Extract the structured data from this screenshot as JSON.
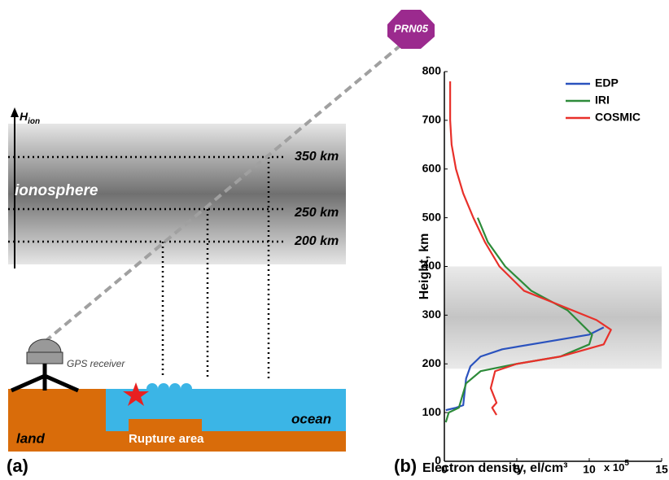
{
  "diagram": {
    "satellite": "PRN05",
    "axis_label": "H",
    "axis_label_sub": "ion",
    "layer": "ionosphere",
    "heights": [
      "350 km",
      "250 km",
      "200 km"
    ],
    "receiver": "GPS receiver",
    "land": "land",
    "ocean": "ocean",
    "rupture": "Rupture area",
    "panel": "(a)"
  },
  "chart_data": {
    "type": "line",
    "panel": "(b)",
    "x_label": "Electron density, el/cm³",
    "x_label_multiplier": "x 10",
    "x_label_exponent": "5",
    "y_label": "Height, km",
    "xlim": [
      0,
      15
    ],
    "xticks": [
      0,
      5,
      10,
      15
    ],
    "ylim": [
      0,
      800
    ],
    "yticks": [
      0,
      100,
      200,
      300,
      400,
      500,
      600,
      700,
      800
    ],
    "highlight_ylim": [
      190,
      400
    ],
    "legend": "upper right",
    "series": [
      {
        "name": "EDP",
        "color": "#2a52be",
        "x": [
          11,
          10,
          7,
          4,
          2.5,
          1.8,
          1.5,
          1.3,
          0.8,
          0.1
        ],
        "values": [
          275,
          260,
          245,
          230,
          215,
          195,
          170,
          115,
          110,
          105
        ]
      },
      {
        "name": "IRI",
        "color": "#2e8b3a",
        "x": [
          2.3,
          3,
          4.2,
          6,
          8.5,
          10.2,
          10,
          8,
          5,
          2.5,
          1.5,
          1.2,
          1,
          0.3,
          0.1
        ],
        "values": [
          500,
          450,
          400,
          350,
          310,
          260,
          240,
          215,
          200,
          185,
          160,
          130,
          110,
          100,
          80
        ]
      },
      {
        "name": "COSMIC",
        "color": "#e8302a",
        "x": [
          0.4,
          0.4,
          0.5,
          0.8,
          1.3,
          2,
          2.8,
          3.8,
          5.5,
          8,
          10.5,
          11.5,
          11,
          8,
          5,
          3.5,
          3.2,
          3.6,
          3.3,
          3.5,
          3.6
        ],
        "values": [
          780,
          700,
          650,
          600,
          550,
          500,
          450,
          400,
          350,
          320,
          290,
          270,
          240,
          215,
          200,
          185,
          150,
          120,
          110,
          100,
          95
        ]
      }
    ]
  }
}
